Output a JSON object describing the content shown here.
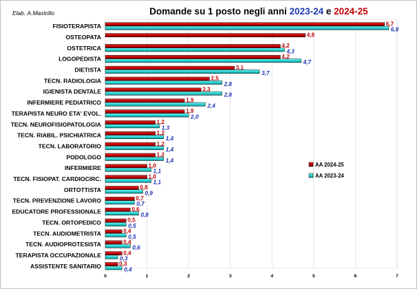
{
  "credit": "Elab. A.Mastrillo",
  "title": {
    "prefix": "Domande su 1 posto negli anni ",
    "year_a": "2023-24",
    "conj": " e ",
    "year_b": "2024-25"
  },
  "colors": {
    "series_2024": "#c00000",
    "series_2023": "#22d0d0",
    "title_year_a": "#1f35b5",
    "title_year_b": "#c00000",
    "label_2024": "#c00000",
    "label_2023": "#1f35b5"
  },
  "chart_data": {
    "type": "bar",
    "orientation": "horizontal",
    "categories": [
      "FISIOTERAPISTA",
      "OSTEOPATA",
      "OSTETRICA",
      "LOGOPEDISTA",
      "DIETISTA",
      "TECN. RADIOLOGIA",
      "IGIENISTA DENTALE",
      "INFERMIERE PEDIATRICO",
      "TERAPISTA NEURO ETA' EVOL.",
      "TECN. NEUROFISIOPATOLOGIA",
      "TECN. RIABIL. PSICHIATRICA",
      "TECN. LABORATORIO",
      "PODOLOGO",
      "INFERMIERE",
      "TECN. FISIOPAT. CARDIOCIRC.",
      "ORTOTTISTA",
      "TECN. PREVENZIONE LAVORO",
      "EDUCATORE PROFESSIONALE",
      "TECN. ORTOPEDICO",
      "TECN. AUDIOMETRISTA",
      "TECN. AUDIOPROTESISTA",
      "TERAPISTA OCCUPAZIONALE",
      "ASSISTENTE SANITARIO"
    ],
    "series": [
      {
        "name": "AA 2024-25",
        "values": [
          6.7,
          4.8,
          4.2,
          4.2,
          3.1,
          2.5,
          2.3,
          1.9,
          1.9,
          1.2,
          1.2,
          1.2,
          1.2,
          1.0,
          1.0,
          0.8,
          0.7,
          0.6,
          0.5,
          0.4,
          0.4,
          0.4,
          0.3
        ],
        "labels": [
          "6,7",
          "4,8",
          "4,2",
          "4,2",
          "3,1",
          "2,5",
          "2,3",
          "1,9",
          "1,9",
          "1,2",
          "1,2",
          "1,2",
          "1,2",
          "1,0",
          "1,0",
          "0,8",
          "0,7",
          "0,6",
          "0,5",
          "0,4",
          "0,4",
          "0,4",
          "0,3"
        ]
      },
      {
        "name": "AA 2023-24",
        "values": [
          6.8,
          null,
          4.3,
          4.7,
          3.7,
          2.8,
          2.8,
          2.4,
          2.0,
          1.3,
          1.4,
          1.4,
          1.4,
          1.1,
          1.1,
          0.9,
          0.7,
          0.8,
          0.5,
          0.5,
          0.6,
          0.3,
          0.4
        ],
        "labels": [
          "6,8",
          "",
          "4,3",
          "4,7",
          "3,7",
          "2,8",
          "2,8",
          "2,4",
          "2,0",
          "1,3",
          "1,4",
          "1,4",
          "1,4",
          "1,1",
          "1,1",
          "0,9",
          "0,7",
          "0,8",
          "0,5",
          "0,5",
          "0,6",
          "0,3",
          "0,4"
        ]
      }
    ],
    "xlim": [
      0,
      7
    ],
    "x_ticks": [
      "0",
      "1",
      "2",
      "3",
      "4",
      "5",
      "6",
      "7"
    ],
    "grid": true,
    "legend_position": "right-middle"
  }
}
